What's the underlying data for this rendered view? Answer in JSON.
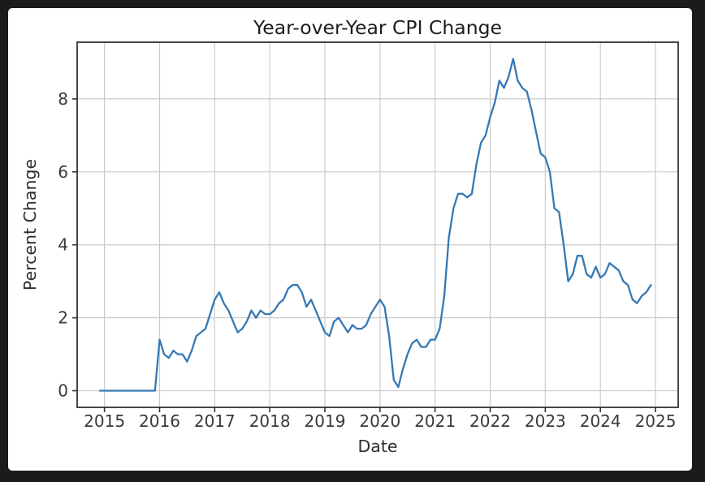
{
  "figure": {
    "background_color": "#1b1b1b",
    "panel_color": "#ffffff"
  },
  "chart_data": {
    "type": "line",
    "title": "Year-over-Year CPI Change",
    "xlabel": "Date",
    "ylabel": "Percent Change",
    "grid": true,
    "legend": "none",
    "line_color": "#3579b4",
    "grid_color": "#cbcbcb",
    "axis_color": "#333333",
    "x_freq": "monthly",
    "x_start": "2014-12",
    "x_start_month_offset": -1,
    "x_tick_labels": [
      "2015",
      "2016",
      "2017",
      "2018",
      "2019",
      "2020",
      "2021",
      "2022",
      "2023",
      "2024",
      "2025"
    ],
    "x_tick_months": [
      0,
      12,
      24,
      36,
      48,
      60,
      72,
      84,
      96,
      108,
      120
    ],
    "y_tick_labels": [
      "0",
      "2",
      "4",
      "6",
      "8"
    ],
    "y_ticks": [
      0,
      2,
      4,
      6,
      8
    ],
    "xlim_months": [
      -5.95,
      124.95
    ],
    "ylim": [
      -0.455,
      9.555
    ],
    "values": [
      0,
      0,
      0,
      0,
      0,
      0,
      0,
      0,
      0,
      0,
      0,
      0,
      0,
      1.4,
      1.0,
      0.9,
      1.1,
      1.0,
      1.0,
      0.8,
      1.1,
      1.5,
      1.6,
      1.7,
      2.1,
      2.5,
      2.7,
      2.4,
      2.2,
      1.9,
      1.6,
      1.7,
      1.9,
      2.2,
      2.0,
      2.2,
      2.1,
      2.1,
      2.2,
      2.4,
      2.5,
      2.8,
      2.9,
      2.9,
      2.7,
      2.3,
      2.5,
      2.2,
      1.9,
      1.6,
      1.5,
      1.9,
      2.0,
      1.8,
      1.6,
      1.8,
      1.7,
      1.7,
      1.8,
      2.1,
      2.3,
      2.5,
      2.3,
      1.5,
      0.3,
      0.1,
      0.6,
      1.0,
      1.3,
      1.4,
      1.2,
      1.2,
      1.4,
      1.4,
      1.7,
      2.6,
      4.2,
      5.0,
      5.4,
      5.4,
      5.3,
      5.4,
      6.2,
      6.8,
      7.0,
      7.5,
      7.9,
      8.5,
      8.3,
      8.6,
      9.1,
      8.5,
      8.3,
      8.2,
      7.7,
      7.1,
      6.5,
      6.4,
      6.0,
      5.0,
      4.9,
      4.0,
      3.0,
      3.2,
      3.7,
      3.7,
      3.2,
      3.1,
      3.4,
      3.1,
      3.2,
      3.5,
      3.4,
      3.3,
      3.0,
      2.9,
      2.5,
      2.4,
      2.6,
      2.7,
      2.9
    ]
  }
}
